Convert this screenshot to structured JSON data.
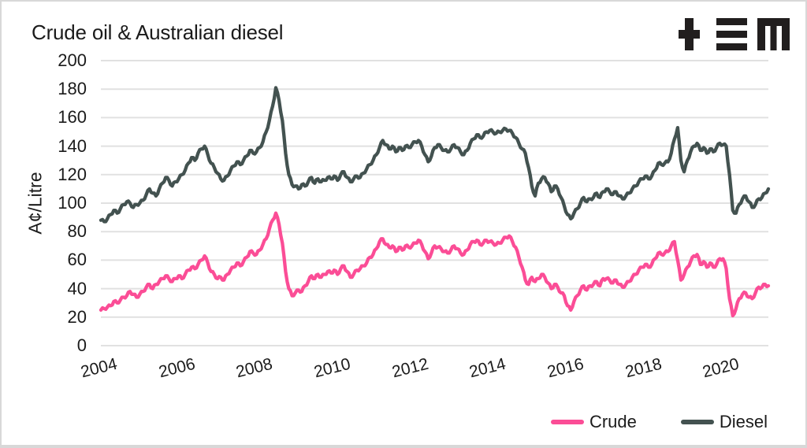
{
  "header": {
    "title": "Crude oil & Australian diesel",
    "logo_name": "tem-logo"
  },
  "colors": {
    "crude": "#fb4d96",
    "diesel": "#435250",
    "grid": "#e1e1e1",
    "text": "#1b1b1b",
    "logo": "#211e1e",
    "card_border": "#d8d8d8",
    "background": "#ffffff"
  },
  "chart_data": {
    "type": "line",
    "title": "Crude oil & Australian diesel",
    "xlabel": "",
    "ylabel": "A¢/Litre",
    "ylim": [
      0,
      200
    ],
    "yticks": [
      0,
      20,
      40,
      60,
      80,
      100,
      120,
      140,
      160,
      180,
      200
    ],
    "xticks": [
      2004,
      2006,
      2008,
      2010,
      2012,
      2014,
      2016,
      2018,
      2020
    ],
    "x_range": [
      2004,
      2021.17
    ],
    "sampling": "monthly estimates, Jan 2004 - Mar 2021",
    "grid": "horizontal",
    "legend_position": "bottom-right",
    "series": [
      {
        "name": "Crude",
        "color": "#fb4d96",
        "values": [
          25,
          26,
          27,
          28,
          31,
          30,
          32,
          34,
          35,
          38,
          36,
          34,
          36,
          38,
          41,
          43,
          40,
          43,
          45,
          47,
          49,
          47,
          45,
          47,
          49,
          47,
          50,
          53,
          55,
          54,
          57,
          60,
          63,
          58,
          52,
          50,
          47,
          48,
          46,
          50,
          53,
          55,
          58,
          56,
          59,
          62,
          66,
          65,
          64,
          67,
          71,
          75,
          82,
          88,
          93,
          85,
          72,
          52,
          40,
          35,
          37,
          39,
          38,
          42,
          45,
          49,
          47,
          50,
          48,
          50,
          52,
          51,
          53,
          50,
          54,
          56,
          52,
          48,
          50,
          53,
          54,
          56,
          58,
          62,
          64,
          68,
          73,
          75,
          71,
          69,
          70,
          66,
          69,
          67,
          70,
          69,
          70,
          72,
          74,
          71,
          66,
          61,
          65,
          70,
          69,
          68,
          66,
          65,
          67,
          70,
          68,
          65,
          64,
          67,
          71,
          73,
          74,
          71,
          72,
          74,
          73,
          72,
          71,
          72,
          74,
          76,
          77,
          73,
          69,
          62,
          55,
          46,
          43,
          48,
          45,
          47,
          50,
          48,
          44,
          40,
          43,
          41,
          37,
          35,
          28,
          25,
          31,
          35,
          39,
          42,
          39,
          42,
          43,
          45,
          42,
          47,
          47,
          46,
          44,
          46,
          43,
          41,
          43,
          45,
          48,
          50,
          53,
          55,
          57,
          55,
          57,
          61,
          65,
          64,
          65,
          66,
          70,
          73,
          60,
          46,
          50,
          55,
          59,
          63,
          64,
          57,
          59,
          55,
          58,
          55,
          57,
          61,
          61,
          54,
          33,
          21,
          26,
          33,
          36,
          37,
          34,
          33,
          37,
          41,
          41,
          43,
          42
        ]
      },
      {
        "name": "Diesel",
        "color": "#435250",
        "values": [
          88,
          87,
          89,
          92,
          95,
          93,
          96,
          99,
          101,
          100,
          97,
          99,
          100,
          102,
          106,
          110,
          107,
          105,
          110,
          114,
          118,
          116,
          112,
          115,
          117,
          120,
          123,
          128,
          132,
          130,
          135,
          138,
          140,
          134,
          128,
          125,
          121,
          117,
          116,
          119,
          123,
          126,
          129,
          127,
          130,
          133,
          137,
          135,
          136,
          139,
          143,
          150,
          158,
          168,
          181,
          172,
          158,
          135,
          120,
          113,
          112,
          110,
          113,
          112,
          115,
          118,
          114,
          117,
          115,
          116,
          118,
          117,
          119,
          116,
          120,
          122,
          118,
          115,
          117,
          119,
          118,
          121,
          124,
          127,
          130,
          134,
          139,
          144,
          141,
          138,
          140,
          136,
          139,
          137,
          140,
          139,
          141,
          143,
          144,
          140,
          134,
          129,
          133,
          139,
          141,
          139,
          137,
          136,
          138,
          141,
          139,
          136,
          134,
          137,
          142,
          145,
          148,
          146,
          147,
          150,
          151,
          150,
          149,
          150,
          151,
          152,
          151,
          149,
          146,
          142,
          138,
          135,
          125,
          112,
          105,
          114,
          117,
          118,
          114,
          108,
          112,
          110,
          104,
          98,
          92,
          89,
          93,
          96,
          100,
          104,
          101,
          103,
          104,
          107,
          104,
          108,
          110,
          108,
          106,
          108,
          105,
          103,
          105,
          107,
          110,
          112,
          115,
          117,
          119,
          117,
          119,
          123,
          128,
          127,
          128,
          129,
          135,
          145,
          153,
          130,
          122,
          130,
          136,
          140,
          142,
          137,
          139,
          135,
          138,
          136,
          139,
          142,
          141,
          140,
          120,
          95,
          93,
          99,
          103,
          105,
          101,
          97,
          99,
          103,
          104,
          107,
          110
        ]
      }
    ]
  },
  "yaxis": {
    "label": "A¢/Litre",
    "tick_labels": [
      "0",
      "20",
      "40",
      "60",
      "80",
      "100",
      "120",
      "140",
      "160",
      "180",
      "200"
    ]
  },
  "xaxis": {
    "tick_labels": [
      "2004",
      "2006",
      "2008",
      "2010",
      "2012",
      "2014",
      "2016",
      "2018",
      "2020"
    ]
  },
  "legend": {
    "items": [
      {
        "label": "Crude"
      },
      {
        "label": "Diesel"
      }
    ]
  }
}
